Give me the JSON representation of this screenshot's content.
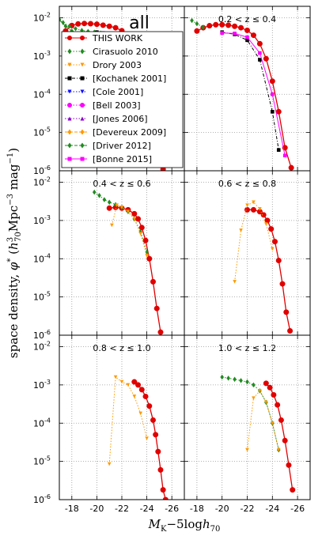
{
  "figure": {
    "title": "all",
    "xlabel": "M_K−5logh_70",
    "ylabel": "space density, φ* (h³₇₀Mpc⁻³ mag⁻¹)",
    "ylabel_parts": [
      "space density, ",
      "φ",
      "*",
      "  (",
      "h",
      "3",
      "70",
      "Mpc",
      "−3",
      " mag",
      "−1",
      ")"
    ],
    "xlabel_parts": [
      "M",
      "K",
      "−5log",
      "h",
      "70"
    ],
    "xticks": [
      "-18",
      "-20",
      "-22",
      "-24",
      "-26"
    ],
    "yticks_mantissa": "10",
    "yticks_exp": [
      "-2",
      "-3",
      "-4",
      "-5",
      "-6"
    ]
  },
  "legend": [
    {
      "label": "THIS WORK",
      "color": "#e00000",
      "marker": "circle",
      "dash": "solid"
    },
    {
      "label": "Cirasuolo 2010",
      "color": "#228b22",
      "marker": "diamond",
      "dash": "dotted"
    },
    {
      "label": "Drory 2003",
      "color": "#ff9900",
      "marker": "triangle-down",
      "dash": "dotted"
    },
    {
      "label": "[Kochanek 2001]",
      "color": "#000000",
      "marker": "square",
      "dash": "dashdot"
    },
    {
      "label": "[Cole 2001]",
      "color": "#1010ff",
      "marker": "triangle-down",
      "dash": "dotted"
    },
    {
      "label": "[Bell 2003]",
      "color": "#ff00ff",
      "marker": "circle",
      "dash": "dotted"
    },
    {
      "label": "[Jones 2006]",
      "color": "#8800cc",
      "marker": "triangle-up",
      "dash": "dotted"
    },
    {
      "label": "[Devereux 2009]",
      "color": "#ff9900",
      "marker": "diamond",
      "dash": "dashed"
    },
    {
      "label": "[Driver 2012]",
      "color": "#228b22",
      "marker": "diamond",
      "dash": "dashed"
    },
    {
      "label": "[Bonne 2015]",
      "color": "#ff00ff",
      "marker": "square",
      "dash": "solid"
    }
  ],
  "chart_data": [
    {
      "type": "line",
      "panel": "all",
      "label": "",
      "xlim": [
        -17,
        -27
      ],
      "ylim_log10": [
        -6,
        -1.7
      ],
      "series": [
        {
          "name": "THIS WORK",
          "x": [
            -17.5,
            -18.0,
            -18.5,
            -19.0,
            -19.5,
            -20.0,
            -20.5,
            -21.0,
            -21.5,
            -22.0,
            -22.5,
            -23.0,
            -23.5,
            -24.0,
            -24.5,
            -25.0,
            -25.3
          ],
          "y": [
            0.0045,
            0.0063,
            0.0069,
            0.0071,
            0.007,
            0.0068,
            0.0064,
            0.006,
            0.0055,
            0.0046,
            0.0033,
            0.0018,
            0.00055,
            0.00012,
            1.5e-05,
            2.2e-06,
            1.1e-06
          ]
        },
        {
          "name": "Cirasuolo 2010",
          "x": [
            -16.9,
            -17.3,
            -17.8,
            -18.3,
            -18.8,
            -19.3,
            -19.8,
            -20.3,
            -20.8,
            -21.3,
            -21.8,
            -22.3,
            -22.8,
            -23.3,
            -23.8,
            -24.3
          ],
          "y": [
            0.0085,
            0.0075,
            0.006,
            0.0052,
            0.0047,
            0.0044,
            0.0042,
            0.004,
            0.0037,
            0.0034,
            0.003,
            0.0024,
            0.0016,
            0.0008,
            0.00025,
            4.5e-05
          ]
        },
        {
          "name": "[Kochanek 2001]",
          "x": [
            -20.0,
            -20.5,
            -21.0,
            -21.5,
            -22.0,
            -22.5,
            -23.0,
            -23.5,
            -24.0,
            -24.5
          ],
          "y": [
            0.0042,
            0.004,
            0.0037,
            0.0032,
            0.0026,
            0.0017,
            0.0008,
            0.00022,
            3.5e-05,
            3.5e-06
          ]
        },
        {
          "name": "[Cole 2001]",
          "x": [
            -18.0,
            -18.5,
            -19.0,
            -19.5,
            -20.0,
            -20.5,
            -21.0,
            -21.5,
            -22.0,
            -22.5,
            -23.0,
            -23.5,
            -24.0,
            -24.5
          ],
          "y": [
            0.004,
            0.0038,
            0.0036,
            0.0035,
            0.0034,
            0.0033,
            0.0031,
            0.0029,
            0.0024,
            0.0016,
            0.00078,
            0.00022,
            3.5e-05,
            4e-06
          ]
        },
        {
          "name": "[Bell 2003]",
          "x": [
            -18.0,
            -18.5,
            -19.0,
            -19.5,
            -20.0,
            -20.5,
            -21.0,
            -21.5,
            -22.0,
            -22.5,
            -23.0,
            -23.5,
            -24.0,
            -24.5,
            -25.0
          ],
          "y": [
            0.0034,
            0.0033,
            0.0032,
            0.0031,
            0.003,
            0.0029,
            0.0028,
            0.0027,
            0.0025,
            0.0019,
            0.001,
            0.00035,
            8e-05,
            1.2e-05,
            2.5e-06
          ]
        },
        {
          "name": "[Jones 2006]",
          "x": [
            -18.0,
            -18.5,
            -19.0,
            -19.5,
            -20.0,
            -20.5,
            -21.0,
            -21.5,
            -22.0,
            -22.5,
            -23.0,
            -23.5,
            -24.0,
            -24.5
          ],
          "y": [
            0.003,
            0.0032,
            0.0034,
            0.0035,
            0.0035,
            0.0034,
            0.0032,
            0.0029,
            0.0024,
            0.0016,
            0.0008,
            0.00025,
            5e-05,
            7e-06
          ]
        },
        {
          "name": "[Devereux 2009]",
          "x": [
            -18.0,
            -19.0,
            -20.0,
            -21.0,
            -22.0,
            -23.0,
            -24.0
          ],
          "y": [
            0.003,
            0.0032,
            0.0034,
            0.0033,
            0.0026,
            0.0009,
            8e-05
          ]
        },
        {
          "name": "[Driver 2012]",
          "x": [
            -17.0,
            -17.5,
            -18.0,
            -18.5,
            -19.0,
            -19.5,
            -20.0,
            -20.5,
            -21.0,
            -21.5,
            -22.0,
            -22.5,
            -23.0,
            -23.5,
            -24.0,
            -24.5
          ],
          "y": [
            0.009,
            0.006,
            0.0045,
            0.0038,
            0.0036,
            0.0034,
            0.0033,
            0.0032,
            0.0031,
            0.0029,
            0.0025,
            0.0018,
            0.001,
            0.0004,
            0.0001,
            1.5e-05
          ]
        },
        {
          "name": "[Bonne 2015]",
          "x": [
            -20.0,
            -20.5,
            -21.0,
            -21.5,
            -22.0,
            -22.5,
            -23.0,
            -23.5,
            -24.0,
            -24.5,
            -25.0
          ],
          "y": [
            0.004,
            0.004,
            0.0039,
            0.0036,
            0.0031,
            0.0023,
            0.0012,
            0.00045,
            0.0001,
            1.5e-05,
            2.5e-06
          ]
        }
      ]
    },
    {
      "type": "line",
      "panel": "0.2<z<=0.4",
      "label": "0.2 < z ≤ 0.4",
      "series": [
        {
          "name": "THIS WORK",
          "x": [
            -18.0,
            -18.5,
            -19.0,
            -19.5,
            -20.0,
            -20.5,
            -21.0,
            -21.5,
            -22.0,
            -22.5,
            -23.0,
            -23.5,
            -24.0,
            -24.5,
            -25.0,
            -25.5
          ],
          "y": [
            0.0045,
            0.0055,
            0.0062,
            0.0066,
            0.0066,
            0.0064,
            0.006,
            0.0055,
            0.0047,
            0.0035,
            0.0021,
            0.00085,
            0.00022,
            3.5e-05,
            4e-06,
            1.2e-06
          ]
        },
        {
          "name": "Cirasuolo 2010",
          "x": [
            -17.6,
            -18.0,
            -18.5
          ],
          "y": [
            0.0085,
            0.007,
            0.0056
          ]
        },
        {
          "name": "[Kochanek 2001]",
          "x": [
            -20.0,
            -21.0,
            -22.0,
            -23.0,
            -24.0,
            -24.5
          ],
          "y": [
            0.0042,
            0.0037,
            0.0026,
            0.0008,
            3.5e-05,
            3.5e-06
          ]
        },
        {
          "name": "[Bonne 2015]",
          "x": [
            -20.0,
            -21.0,
            -22.0,
            -23.0,
            -24.0,
            -25.0
          ],
          "y": [
            0.004,
            0.0039,
            0.0031,
            0.0012,
            0.0001,
            2.5e-06
          ]
        }
      ]
    },
    {
      "type": "line",
      "panel": "0.4<z<=0.6",
      "label": "0.4 < z ≤ 0.6",
      "series": [
        {
          "name": "THIS WORK",
          "x": [
            -21.0,
            -21.5,
            -22.0,
            -22.5,
            -23.0,
            -23.3,
            -23.6,
            -23.9,
            -24.2,
            -24.5,
            -24.8,
            -25.1
          ],
          "y": [
            0.0021,
            0.0022,
            0.0021,
            0.0019,
            0.0015,
            0.0011,
            0.00065,
            0.0003,
            0.0001,
            2.5e-05,
            5e-06,
            1.2e-06
          ]
        },
        {
          "name": "Cirasuolo 2010",
          "x": [
            -19.8,
            -20.2,
            -20.6,
            -21.0,
            -21.5,
            -22.0,
            -22.5,
            -23.0,
            -23.5,
            -24.0
          ],
          "y": [
            0.0055,
            0.0045,
            0.0035,
            0.003,
            0.0026,
            0.0022,
            0.0017,
            0.0011,
            0.0005,
            0.00015
          ]
        },
        {
          "name": "Drory 2003",
          "x": [
            -21.2,
            -21.6,
            -22.0,
            -22.5,
            -23.0,
            -23.5,
            -24.0
          ],
          "y": [
            0.00075,
            0.0025,
            0.0022,
            0.0017,
            0.0011,
            0.00045,
            0.00012
          ]
        }
      ]
    },
    {
      "type": "line",
      "panel": "0.6<z<=0.8",
      "label": "0.6 < z ≤ 0.8",
      "series": [
        {
          "name": "THIS WORK",
          "x": [
            -22.0,
            -22.5,
            -23.0,
            -23.3,
            -23.6,
            -23.9,
            -24.2,
            -24.5,
            -24.8,
            -25.1,
            -25.4
          ],
          "y": [
            0.0019,
            0.0019,
            0.0017,
            0.0014,
            0.001,
            0.0006,
            0.00028,
            9e-05,
            2.2e-05,
            4e-06,
            1.3e-06
          ]
        },
        {
          "name": "Drory 2003",
          "x": [
            -21.0,
            -21.5,
            -22.0,
            -22.5,
            -23.0,
            -23.5,
            -24.0
          ],
          "y": [
            2.5e-05,
            0.00055,
            0.0025,
            0.003,
            0.002,
            0.0008,
            0.00018
          ]
        }
      ]
    },
    {
      "type": "line",
      "panel": "0.8<z<=1.0",
      "label": "0.8 < z ≤ 1.0",
      "series": [
        {
          "name": "THIS WORK",
          "x": [
            -23.0,
            -23.3,
            -23.6,
            -23.9,
            -24.2,
            -24.5,
            -24.7,
            -24.9,
            -25.1,
            -25.3,
            -25.5
          ],
          "y": [
            0.0012,
            0.001,
            0.00075,
            0.0005,
            0.00028,
            0.00012,
            5e-05,
            1.8e-05,
            6e-06,
            1.8e-06,
            1e-06
          ]
        },
        {
          "name": "Drory 2003",
          "x": [
            -21.0,
            -21.5,
            -22.0,
            -22.5,
            -23.0,
            -23.5,
            -24.0
          ],
          "y": [
            8.5e-06,
            0.0016,
            0.0012,
            0.001,
            0.0005,
            0.00018,
            4e-05
          ]
        }
      ]
    },
    {
      "type": "line",
      "panel": "1.0<z<=1.2",
      "label": "1.0 < z ≤ 1.2",
      "series": [
        {
          "name": "THIS WORK",
          "x": [
            -23.5,
            -23.8,
            -24.1,
            -24.4,
            -24.7,
            -25.0,
            -25.3,
            -25.6
          ],
          "y": [
            0.0011,
            0.00085,
            0.00055,
            0.0003,
            0.00012,
            3.5e-05,
            8e-06,
            1.8e-06
          ]
        },
        {
          "name": "Cirasuolo 2010",
          "x": [
            -20.0,
            -20.5,
            -21.0,
            -21.5,
            -22.0,
            -22.5,
            -23.0,
            -23.5,
            -24.0,
            -24.5
          ],
          "y": [
            0.0016,
            0.0015,
            0.0014,
            0.0013,
            0.0012,
            0.001,
            0.0007,
            0.00035,
            0.0001,
            2e-05
          ]
        },
        {
          "name": "Drory 2003",
          "x": [
            -22.0,
            -22.5,
            -23.0,
            -23.5,
            -24.0,
            -24.5
          ],
          "y": [
            2e-05,
            0.00045,
            0.0007,
            0.00035,
            0.0001,
            2e-05
          ]
        }
      ]
    }
  ]
}
